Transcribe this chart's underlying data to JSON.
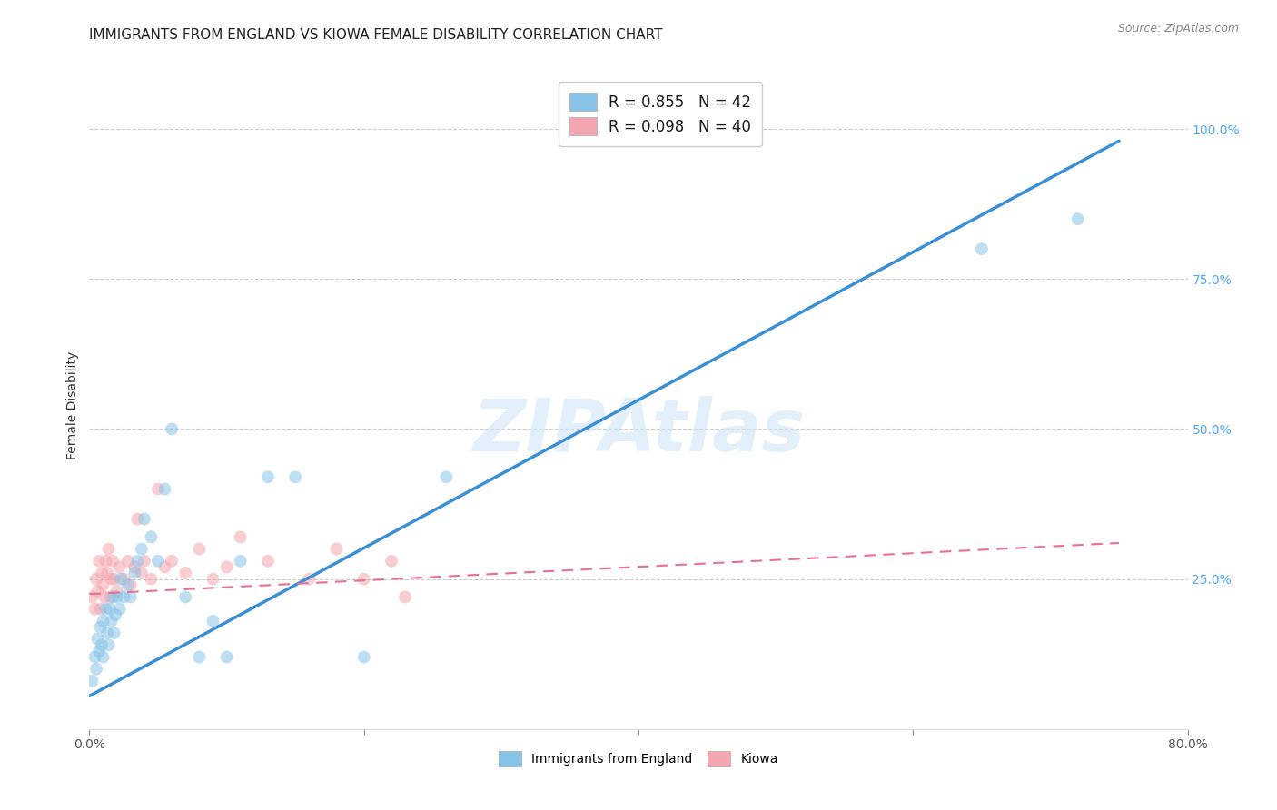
{
  "title": "IMMIGRANTS FROM ENGLAND VS KIOWA FEMALE DISABILITY CORRELATION CHART",
  "source": "Source: ZipAtlas.com",
  "ylabel": "Female Disability",
  "xlim": [
    0.0,
    0.8
  ],
  "ylim": [
    0.0,
    1.08
  ],
  "xtick_labels": [
    "0.0%",
    "",
    "",
    "",
    "80.0%"
  ],
  "xtick_values": [
    0.0,
    0.2,
    0.4,
    0.6,
    0.8
  ],
  "ytick_right_labels": [
    "100.0%",
    "75.0%",
    "50.0%",
    "25.0%"
  ],
  "ytick_right_values": [
    1.0,
    0.75,
    0.5,
    0.25
  ],
  "legend_label1": "R = 0.855   N = 42",
  "legend_label2": "R = 0.098   N = 40",
  "legend_bottom1": "Immigrants from England",
  "legend_bottom2": "Kiowa",
  "color_blue": "#89c4e8",
  "color_pink": "#f4a6b0",
  "color_blue_line": "#3b8fd4",
  "color_pink_line": "#e87090",
  "watermark": "ZIPAtlas",
  "blue_scatter_x": [
    0.002,
    0.004,
    0.005,
    0.006,
    0.007,
    0.008,
    0.009,
    0.01,
    0.01,
    0.012,
    0.013,
    0.014,
    0.015,
    0.016,
    0.017,
    0.018,
    0.019,
    0.02,
    0.022,
    0.023,
    0.025,
    0.028,
    0.03,
    0.033,
    0.035,
    0.038,
    0.04,
    0.045,
    0.05,
    0.055,
    0.06,
    0.07,
    0.08,
    0.09,
    0.1,
    0.11,
    0.13,
    0.15,
    0.2,
    0.26,
    0.65,
    0.72
  ],
  "blue_scatter_y": [
    0.08,
    0.12,
    0.1,
    0.15,
    0.13,
    0.17,
    0.14,
    0.12,
    0.18,
    0.2,
    0.16,
    0.14,
    0.2,
    0.18,
    0.22,
    0.16,
    0.19,
    0.22,
    0.2,
    0.25,
    0.22,
    0.24,
    0.22,
    0.26,
    0.28,
    0.3,
    0.35,
    0.32,
    0.28,
    0.4,
    0.5,
    0.22,
    0.12,
    0.18,
    0.12,
    0.28,
    0.42,
    0.42,
    0.12,
    0.42,
    0.8,
    0.85
  ],
  "pink_scatter_x": [
    0.002,
    0.004,
    0.005,
    0.006,
    0.007,
    0.008,
    0.009,
    0.01,
    0.011,
    0.012,
    0.013,
    0.014,
    0.015,
    0.016,
    0.017,
    0.018,
    0.02,
    0.022,
    0.025,
    0.028,
    0.03,
    0.033,
    0.035,
    0.038,
    0.04,
    0.045,
    0.05,
    0.055,
    0.06,
    0.07,
    0.08,
    0.09,
    0.1,
    0.11,
    0.13,
    0.16,
    0.18,
    0.2,
    0.22,
    0.23
  ],
  "pink_scatter_y": [
    0.22,
    0.2,
    0.25,
    0.23,
    0.28,
    0.2,
    0.26,
    0.24,
    0.22,
    0.28,
    0.26,
    0.3,
    0.22,
    0.25,
    0.28,
    0.25,
    0.23,
    0.27,
    0.25,
    0.28,
    0.24,
    0.27,
    0.35,
    0.26,
    0.28,
    0.25,
    0.4,
    0.27,
    0.28,
    0.26,
    0.3,
    0.25,
    0.27,
    0.32,
    0.28,
    0.25,
    0.3,
    0.25,
    0.28,
    0.22
  ],
  "blue_line_x": [
    0.0,
    0.75
  ],
  "blue_line_y": [
    0.055,
    0.98
  ],
  "pink_line_x": [
    0.0,
    0.75
  ],
  "pink_line_y": [
    0.225,
    0.31
  ],
  "grid_color": "#cccccc",
  "background_color": "#ffffff",
  "title_fontsize": 11,
  "axis_fontsize": 10,
  "scatter_size": 100,
  "scatter_alpha": 0.55
}
